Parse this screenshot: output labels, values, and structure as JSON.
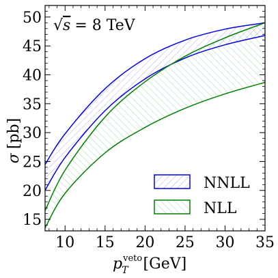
{
  "chart_data": {
    "type": "area",
    "xlabel_main": "p",
    "xlabel_sub": "T",
    "xlabel_sup": "veto",
    "xlabel_unit": "[GeV]",
    "ylabel_main": "σ",
    "ylabel_unit": "[pb]",
    "annotation": {
      "sqrt": "√",
      "var": "s",
      "rest": "= 8 TeV"
    },
    "xlim": [
      7.5,
      35
    ],
    "ylim": [
      13,
      52
    ],
    "xticks": [
      10,
      15,
      20,
      25,
      30,
      35
    ],
    "yticks": [
      15,
      20,
      25,
      30,
      35,
      40,
      45,
      50
    ],
    "legend_position": "lower-right",
    "series": [
      {
        "name": "NNLL",
        "color": "#0000ee",
        "fill": "hatched",
        "x": [
          7.5,
          10,
          15,
          20,
          25,
          30,
          35
        ],
        "upper": [
          24.5,
          29.8,
          37.6,
          42.8,
          46.0,
          47.9,
          49.0
        ],
        "lower": [
          20.0,
          25.7,
          33.8,
          39.3,
          42.9,
          45.2,
          46.8
        ]
      },
      {
        "name": "NLL",
        "color": "#008000",
        "fill": "hatched",
        "x": [
          7.5,
          10,
          15,
          20,
          25,
          30,
          35
        ],
        "upper": [
          16.5,
          23.5,
          32.7,
          38.8,
          43.2,
          46.4,
          49.0
        ],
        "lower": [
          13.5,
          19.5,
          26.5,
          30.9,
          34.2,
          36.7,
          38.7
        ]
      }
    ]
  }
}
